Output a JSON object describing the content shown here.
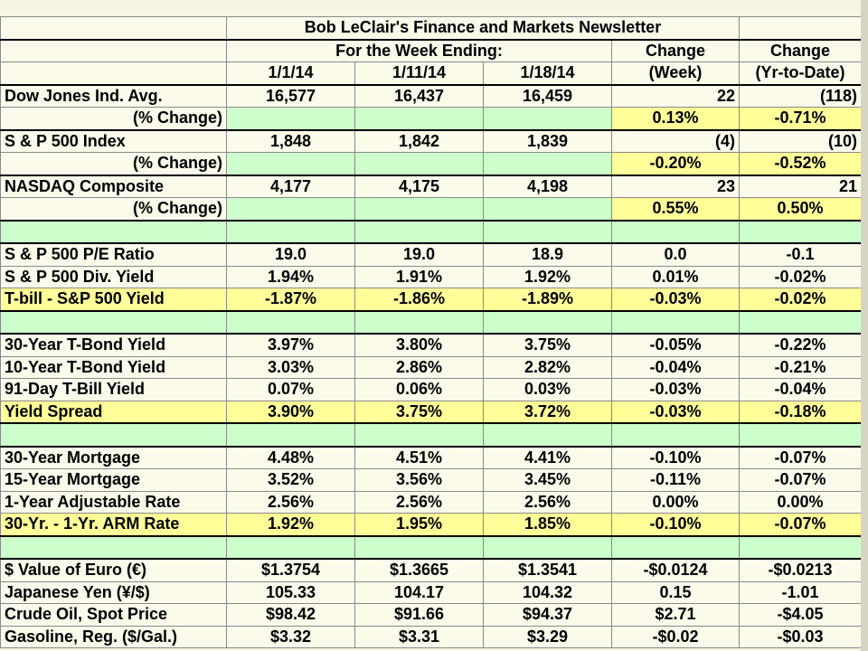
{
  "title": "Bob LeClair's Finance and Markets Newsletter",
  "header": {
    "week_ending": "For the Week Ending:",
    "change_label": "Change",
    "change_week": "(Week)",
    "change_ytd": "(Yr-to-Date)",
    "dates": [
      "1/1/14",
      "1/11/14",
      "1/18/14"
    ]
  },
  "rows": {
    "dow": {
      "label": "Dow Jones Ind. Avg.",
      "v1": "16,577",
      "v2": "16,437",
      "v3": "16,459",
      "wk": "22",
      "ytd": "(118)"
    },
    "dow_pct": {
      "label": "(% Change)",
      "wk": "0.13%",
      "ytd": "-0.71%"
    },
    "sp": {
      "label": "S & P 500 Index",
      "v1": "1,848",
      "v2": "1,842",
      "v3": "1,839",
      "wk": "(4)",
      "ytd": "(10)"
    },
    "sp_pct": {
      "label": "(% Change)",
      "wk": "-0.20%",
      "ytd": "-0.52%"
    },
    "nasdaq": {
      "label": "NASDAQ Composite",
      "v1": "4,177",
      "v2": "4,175",
      "v3": "4,198",
      "wk": "23",
      "ytd": "21"
    },
    "nasdaq_pct": {
      "label": "(% Change)",
      "wk": "0.55%",
      "ytd": "0.50%"
    },
    "pe": {
      "label": "S & P 500 P/E Ratio",
      "v1": "19.0",
      "v2": "19.0",
      "v3": "18.9",
      "wk": "0.0",
      "ytd": "-0.1"
    },
    "div": {
      "label": "S & P 500 Div. Yield",
      "v1": "1.94%",
      "v2": "1.91%",
      "v3": "1.92%",
      "wk": "0.01%",
      "ytd": "-0.02%"
    },
    "tbill_sp": {
      "label": "T-bill - S&P 500 Yield",
      "v1": "-1.87%",
      "v2": "-1.86%",
      "v3": "-1.89%",
      "wk": "-0.03%",
      "ytd": "-0.02%"
    },
    "t30": {
      "label": "30-Year T-Bond Yield",
      "v1": "3.97%",
      "v2": "3.80%",
      "v3": "3.75%",
      "wk": "-0.05%",
      "ytd": "-0.22%"
    },
    "t10": {
      "label": "10-Year T-Bond Yield",
      "v1": "3.03%",
      "v2": "2.86%",
      "v3": "2.82%",
      "wk": "-0.04%",
      "ytd": "-0.21%"
    },
    "t91": {
      "label": "91-Day T-Bill Yield",
      "v1": "0.07%",
      "v2": "0.06%",
      "v3": "0.03%",
      "wk": "-0.03%",
      "ytd": "-0.04%"
    },
    "spread": {
      "label": "Yield Spread",
      "v1": "3.90%",
      "v2": "3.75%",
      "v3": "3.72%",
      "wk": "-0.03%",
      "ytd": "-0.18%"
    },
    "m30": {
      "label": "30-Year Mortgage",
      "v1": "4.48%",
      "v2": "4.51%",
      "v3": "4.41%",
      "wk": "-0.10%",
      "ytd": "-0.07%"
    },
    "m15": {
      "label": "15-Year Mortgage",
      "v1": "3.52%",
      "v2": "3.56%",
      "v3": "3.45%",
      "wk": "-0.11%",
      "ytd": "-0.07%"
    },
    "arm1": {
      "label": "1-Year Adjustable Rate",
      "v1": "2.56%",
      "v2": "2.56%",
      "v3": "2.56%",
      "wk": "0.00%",
      "ytd": "0.00%"
    },
    "arm_spread": {
      "label": "30-Yr. - 1-Yr. ARM Rate",
      "v1": "1.92%",
      "v2": "1.95%",
      "v3": "1.85%",
      "wk": "-0.10%",
      "ytd": "-0.07%"
    },
    "euro": {
      "label": "$ Value of Euro (€)",
      "v1": "$1.3754",
      "v2": "$1.3665",
      "v3": "$1.3541",
      "wk": "-$0.0124",
      "ytd": "-$0.0213"
    },
    "yen": {
      "label": "Japanese Yen (¥/$)",
      "v1": "105.33",
      "v2": "104.17",
      "v3": "104.32",
      "wk": "0.15",
      "ytd": "-1.01"
    },
    "oil": {
      "label": "Crude Oil, Spot Price",
      "v1": "$98.42",
      "v2": "$91.66",
      "v3": "$94.37",
      "wk": "$2.71",
      "ytd": "-$4.05"
    },
    "gas": {
      "label": "Gasoline, Reg. ($/Gal.)",
      "v1": "$3.32",
      "v2": "$3.31",
      "v3": "$3.29",
      "wk": "-$0.02",
      "ytd": "-$0.03"
    }
  },
  "colors": {
    "highlight_yellow": "#ffff99",
    "light_green": "#ccffcc",
    "cell_white": "#fbfaeb"
  }
}
